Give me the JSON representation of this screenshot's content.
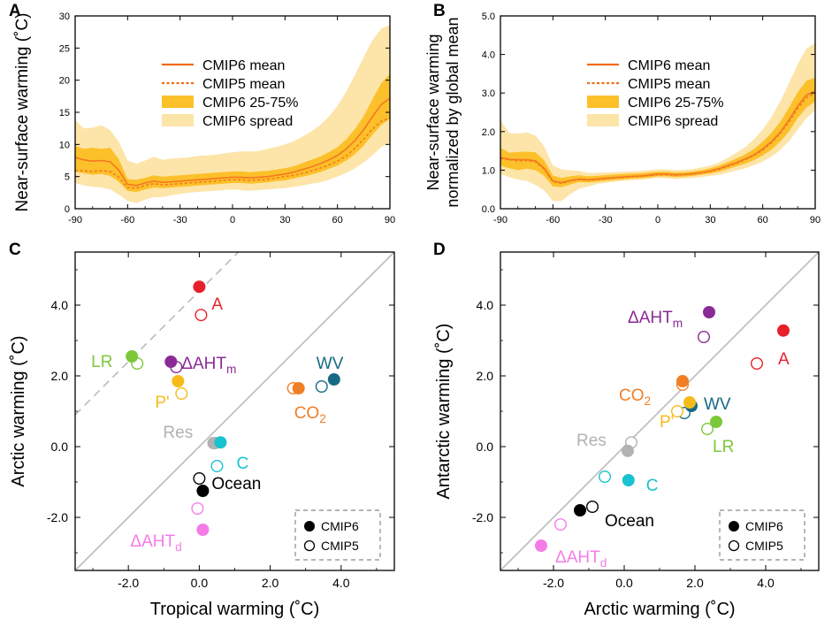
{
  "figure": {
    "width": 941,
    "height": 718
  },
  "style": {
    "mean_color": "#f47820",
    "iqr_color": "#fcc02a",
    "spread_color": "#fde4a8",
    "legend_line_color": "#f26a12",
    "one_to_one_color": "#bbbbbb"
  },
  "chart_data": [
    {
      "id": "A",
      "panel_label": "A",
      "type": "area",
      "xlabel": "",
      "ylabel_lines": [
        "Near-surface warming (˚C)"
      ],
      "xlim": [
        -90,
        90
      ],
      "ylim": [
        0,
        30
      ],
      "xticks": [
        -90,
        -60,
        -30,
        0,
        30,
        60,
        90
      ],
      "xtick_labels": [
        "-90",
        "-60",
        "-30",
        "0",
        "30",
        "60",
        "90"
      ],
      "yticks": [
        0,
        5,
        10,
        15,
        20,
        25,
        30
      ],
      "ytick_labels": [
        "0",
        "5",
        "10",
        "15",
        "20",
        "25",
        "30"
      ],
      "legend": [
        "CMIP6 mean",
        "CMIP5 mean",
        "CMIP6 25-75%",
        "CMIP6 spread"
      ],
      "x": [
        -90,
        -85,
        -80,
        -75,
        -70,
        -65,
        -60,
        -55,
        -50,
        -45,
        -40,
        -35,
        -30,
        -25,
        -20,
        -15,
        -10,
        -5,
        0,
        5,
        10,
        15,
        20,
        25,
        30,
        35,
        40,
        45,
        50,
        55,
        60,
        65,
        70,
        75,
        80,
        85,
        90
      ],
      "series": [
        {
          "name": "CMIP6 mean",
          "values": [
            8.0,
            7.6,
            7.4,
            7.5,
            7.3,
            6.0,
            3.8,
            3.6,
            4.0,
            4.3,
            4.1,
            4.2,
            4.3,
            4.4,
            4.5,
            4.6,
            4.7,
            4.8,
            4.9,
            4.9,
            4.8,
            4.9,
            5.0,
            5.2,
            5.4,
            5.7,
            6.1,
            6.5,
            7.0,
            7.6,
            8.3,
            9.3,
            10.6,
            12.3,
            14.3,
            16.2,
            17.2
          ]
        },
        {
          "name": "CMIP5 mean",
          "values": [
            5.9,
            5.9,
            5.8,
            5.9,
            5.8,
            4.9,
            3.3,
            3.2,
            3.6,
            3.9,
            3.7,
            3.8,
            3.9,
            4.0,
            4.1,
            4.2,
            4.3,
            4.4,
            4.5,
            4.5,
            4.4,
            4.5,
            4.6,
            4.8,
            5.0,
            5.2,
            5.5,
            5.9,
            6.3,
            6.8,
            7.4,
            8.2,
            9.4,
            10.8,
            12.4,
            13.6,
            14.1
          ]
        },
        {
          "name": "CMIP6 25-75% low",
          "values": [
            5.8,
            5.5,
            5.3,
            5.4,
            5.1,
            4.2,
            2.8,
            2.6,
            3.0,
            3.3,
            3.2,
            3.3,
            3.4,
            3.5,
            3.6,
            3.7,
            3.8,
            3.9,
            4.0,
            4.0,
            3.9,
            4.0,
            4.1,
            4.3,
            4.4,
            4.7,
            5.0,
            5.3,
            5.7,
            6.2,
            6.7,
            7.5,
            8.5,
            9.8,
            11.5,
            13.0,
            14.0
          ]
        },
        {
          "name": "CMIP6 25-75% high",
          "values": [
            9.8,
            9.3,
            9.5,
            9.3,
            9.5,
            7.7,
            4.6,
            4.5,
            4.8,
            5.2,
            5.0,
            5.1,
            5.2,
            5.3,
            5.4,
            5.5,
            5.6,
            5.7,
            5.8,
            5.8,
            5.7,
            5.8,
            5.9,
            6.1,
            6.3,
            6.6,
            7.1,
            7.6,
            8.1,
            8.8,
            9.6,
            10.8,
            12.4,
            14.4,
            17.0,
            19.5,
            21.0
          ]
        },
        {
          "name": "CMIP6 spread low",
          "values": [
            4.0,
            3.6,
            3.4,
            3.3,
            3.0,
            2.2,
            1.2,
            0.9,
            1.4,
            1.8,
            1.8,
            2.1,
            2.3,
            2.5,
            2.6,
            2.7,
            2.8,
            2.9,
            3.0,
            2.9,
            2.8,
            2.9,
            3.0,
            3.1,
            3.2,
            3.4,
            3.6,
            3.9,
            4.1,
            4.5,
            5.0,
            5.6,
            6.3,
            7.2,
            8.3,
            9.6,
            10.2
          ]
        },
        {
          "name": "CMIP6 spread high",
          "values": [
            13.8,
            12.5,
            12.6,
            13.0,
            12.2,
            10.4,
            7.5,
            7.0,
            7.5,
            8.1,
            7.6,
            7.8,
            7.9,
            8.0,
            8.2,
            8.3,
            8.4,
            8.6,
            8.8,
            8.9,
            8.9,
            9.0,
            9.3,
            9.6,
            10.0,
            10.5,
            11.2,
            12.0,
            13.0,
            14.3,
            16.0,
            18.2,
            20.8,
            23.6,
            26.2,
            28.0,
            28.6
          ]
        }
      ]
    },
    {
      "id": "B",
      "panel_label": "B",
      "type": "area",
      "xlabel": "",
      "ylabel_lines": [
        "Near-surface warming",
        "normalized by global mean"
      ],
      "xlim": [
        -90,
        90
      ],
      "ylim": [
        0,
        5
      ],
      "xticks": [
        -90,
        -60,
        -30,
        0,
        30,
        60,
        90
      ],
      "xtick_labels": [
        "-90",
        "-60",
        "-30",
        "0",
        "30",
        "60",
        "90"
      ],
      "yticks": [
        0,
        1,
        2,
        3,
        4,
        5
      ],
      "ytick_labels": [
        "0.0",
        "1.0",
        "2.0",
        "3.0",
        "4.0",
        "5.0"
      ],
      "legend": [
        "CMIP6 mean",
        "CMIP5 mean",
        "CMIP6 25-75%",
        "CMIP6 spread"
      ],
      "x": [
        -90,
        -85,
        -80,
        -75,
        -70,
        -65,
        -60,
        -55,
        -50,
        -45,
        -40,
        -35,
        -30,
        -25,
        -20,
        -15,
        -10,
        -5,
        0,
        5,
        10,
        15,
        20,
        25,
        30,
        35,
        40,
        45,
        50,
        55,
        60,
        65,
        70,
        75,
        80,
        85,
        90
      ],
      "series": [
        {
          "name": "CMIP6 mean",
          "values": [
            1.33,
            1.28,
            1.27,
            1.27,
            1.24,
            1.05,
            0.72,
            0.68,
            0.73,
            0.77,
            0.75,
            0.77,
            0.79,
            0.81,
            0.82,
            0.84,
            0.85,
            0.87,
            0.9,
            0.9,
            0.88,
            0.89,
            0.91,
            0.94,
            0.98,
            1.04,
            1.12,
            1.2,
            1.29,
            1.4,
            1.55,
            1.74,
            1.98,
            2.3,
            2.66,
            2.95,
            3.05
          ]
        },
        {
          "name": "CMIP5 mean",
          "values": [
            1.3,
            1.27,
            1.24,
            1.25,
            1.22,
            1.03,
            0.7,
            0.66,
            0.72,
            0.76,
            0.74,
            0.76,
            0.78,
            0.8,
            0.81,
            0.83,
            0.84,
            0.86,
            0.88,
            0.88,
            0.87,
            0.88,
            0.9,
            0.93,
            0.97,
            1.02,
            1.1,
            1.18,
            1.27,
            1.38,
            1.52,
            1.71,
            1.95,
            2.25,
            2.6,
            2.88,
            3.0
          ]
        },
        {
          "name": "CMIP6 25-75% low",
          "values": [
            1.12,
            1.05,
            1.0,
            1.04,
            1.0,
            0.85,
            0.58,
            0.56,
            0.63,
            0.69,
            0.68,
            0.7,
            0.72,
            0.74,
            0.76,
            0.78,
            0.79,
            0.81,
            0.84,
            0.84,
            0.82,
            0.83,
            0.85,
            0.88,
            0.91,
            0.96,
            1.03,
            1.1,
            1.17,
            1.26,
            1.38,
            1.53,
            1.74,
            2.0,
            2.35,
            2.62,
            2.78
          ]
        },
        {
          "name": "CMIP6 25-75% high",
          "values": [
            1.58,
            1.45,
            1.47,
            1.48,
            1.46,
            1.26,
            0.86,
            0.8,
            0.84,
            0.87,
            0.84,
            0.85,
            0.87,
            0.89,
            0.9,
            0.91,
            0.92,
            0.94,
            0.96,
            0.96,
            0.94,
            0.95,
            0.97,
            1.0,
            1.05,
            1.12,
            1.21,
            1.3,
            1.41,
            1.55,
            1.74,
            1.97,
            2.25,
            2.62,
            3.02,
            3.32,
            3.4
          ]
        },
        {
          "name": "CMIP6 spread low",
          "values": [
            0.9,
            0.82,
            0.76,
            0.72,
            0.62,
            0.48,
            0.2,
            0.2,
            0.38,
            0.52,
            0.57,
            0.64,
            0.67,
            0.7,
            0.72,
            0.74,
            0.75,
            0.77,
            0.8,
            0.79,
            0.77,
            0.78,
            0.8,
            0.82,
            0.85,
            0.88,
            0.93,
            0.99,
            1.05,
            1.13,
            1.22,
            1.35,
            1.52,
            1.75,
            2.05,
            2.35,
            2.55
          ]
        },
        {
          "name": "CMIP6 spread high",
          "values": [
            2.3,
            1.96,
            1.95,
            1.98,
            1.9,
            1.62,
            1.12,
            1.02,
            0.99,
            0.98,
            0.93,
            0.93,
            0.94,
            0.95,
            0.96,
            0.97,
            0.98,
            1.0,
            1.02,
            1.02,
            1.0,
            1.01,
            1.03,
            1.07,
            1.12,
            1.2,
            1.32,
            1.45,
            1.6,
            1.8,
            2.05,
            2.38,
            2.78,
            3.25,
            3.75,
            4.15,
            4.3
          ]
        }
      ]
    },
    {
      "id": "C",
      "panel_label": "C",
      "type": "scatter",
      "xlabel": "Tropical warming (˚C)",
      "ylabel": "Arctic warming (˚C)",
      "xlim": [
        -3.5,
        5.5
      ],
      "ylim": [
        -3.5,
        5.5
      ],
      "xticks": [
        -2,
        0,
        2,
        4
      ],
      "xtick_labels": [
        "-2.0",
        "0.0",
        "2.0",
        "4.0"
      ],
      "yticks": [
        -2,
        0,
        2,
        4
      ],
      "ytick_labels": [
        "-2.0",
        "0.0",
        "2.0",
        "4.0"
      ],
      "reference_lines": [
        {
          "style": "solid",
          "intercept": 0
        },
        {
          "style": "dashed",
          "intercept": 4.4
        }
      ],
      "legend": [
        "CMIP6",
        "CMIP5"
      ],
      "points": [
        {
          "name": "A",
          "color": "#e8202a",
          "cmip6": [
            0.0,
            4.52
          ],
          "cmip5": [
            0.05,
            3.72
          ]
        },
        {
          "name": "LR",
          "color": "#7cc83a",
          "cmip6": [
            -1.9,
            2.55
          ],
          "cmip5": [
            -1.75,
            2.35
          ]
        },
        {
          "name": "ΔAHTm",
          "color": "#8a2b95",
          "cmip6": [
            -0.8,
            2.4
          ],
          "cmip5": [
            -0.65,
            2.25
          ]
        },
        {
          "name": "P'",
          "color": "#f6bb1a",
          "cmip6": [
            -0.6,
            1.85
          ],
          "cmip5": [
            -0.5,
            1.5
          ]
        },
        {
          "name": "CO2",
          "color": "#f07e25",
          "cmip6": [
            2.8,
            1.65
          ],
          "cmip5": [
            2.65,
            1.65
          ]
        },
        {
          "name": "WV",
          "color": "#176a84",
          "cmip6": [
            3.8,
            1.9
          ],
          "cmip5": [
            3.45,
            1.7
          ]
        },
        {
          "name": "Res",
          "color": "#b2b2b2",
          "cmip6": [
            0.4,
            0.1
          ],
          "cmip5": [
            0.45,
            0.1
          ]
        },
        {
          "name": "C",
          "color": "#19c2cf",
          "cmip6": [
            0.6,
            0.12
          ],
          "cmip5": [
            0.5,
            -0.55
          ]
        },
        {
          "name": "Ocean",
          "color": "#000000",
          "cmip6": [
            0.1,
            -1.25
          ],
          "cmip5": [
            0.0,
            -0.9
          ]
        },
        {
          "name": "ΔAHTd",
          "color": "#f57ce7",
          "cmip6": [
            0.1,
            -2.35
          ],
          "cmip5": [
            -0.05,
            -1.75
          ]
        }
      ]
    },
    {
      "id": "D",
      "panel_label": "D",
      "type": "scatter",
      "xlabel": "Arctic warming (˚C)",
      "ylabel": "Antarctic warming (˚C)",
      "xlim": [
        -3.5,
        5.5
      ],
      "ylim": [
        -3.5,
        5.5
      ],
      "xticks": [
        -2,
        0,
        2,
        4
      ],
      "xtick_labels": [
        "-2.0",
        "0.0",
        "2.0",
        "4.0"
      ],
      "yticks": [
        -2,
        0,
        2,
        4
      ],
      "ytick_labels": [
        "-2.0",
        "0.0",
        "2.0",
        "4.0"
      ],
      "reference_lines": [
        {
          "style": "solid",
          "intercept": 0
        }
      ],
      "legend": [
        "CMIP6",
        "CMIP5"
      ],
      "points": [
        {
          "name": "ΔAHTm",
          "color": "#8a2b95",
          "cmip6": [
            2.4,
            3.8
          ],
          "cmip5": [
            2.25,
            3.1
          ]
        },
        {
          "name": "A",
          "color": "#e8202a",
          "cmip6": [
            4.5,
            3.28
          ],
          "cmip5": [
            3.75,
            2.35
          ]
        },
        {
          "name": "CO2",
          "color": "#f07e25",
          "cmip6": [
            1.65,
            1.85
          ],
          "cmip5": [
            1.65,
            1.75
          ]
        },
        {
          "name": "WV",
          "color": "#176a84",
          "cmip6": [
            1.9,
            1.15
          ],
          "cmip5": [
            1.7,
            0.95
          ]
        },
        {
          "name": "P'",
          "color": "#f6bb1a",
          "cmip6": [
            1.85,
            1.25
          ],
          "cmip5": [
            1.5,
            1.0
          ]
        },
        {
          "name": "LR",
          "color": "#7cc83a",
          "cmip6": [
            2.6,
            0.7
          ],
          "cmip5": [
            2.35,
            0.5
          ]
        },
        {
          "name": "Res",
          "color": "#b2b2b2",
          "cmip6": [
            0.1,
            -0.12
          ],
          "cmip5": [
            0.2,
            0.12
          ]
        },
        {
          "name": "C",
          "color": "#19c2cf",
          "cmip6": [
            0.12,
            -0.95
          ],
          "cmip5": [
            -0.55,
            -0.85
          ]
        },
        {
          "name": "Ocean",
          "color": "#000000",
          "cmip6": [
            -1.25,
            -1.8
          ],
          "cmip5": [
            -0.9,
            -1.7
          ]
        },
        {
          "name": "ΔAHTd",
          "color": "#f57ce7",
          "cmip6": [
            -2.35,
            -2.8
          ],
          "cmip5": [
            -1.8,
            -2.2
          ]
        }
      ]
    }
  ]
}
